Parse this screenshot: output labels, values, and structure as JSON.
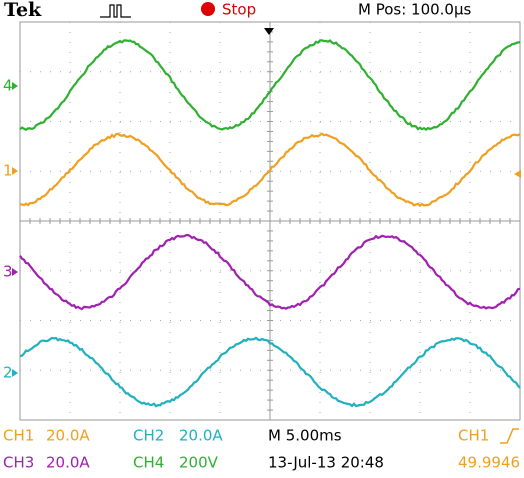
{
  "header": {
    "brand": "Tek",
    "status": "Stop",
    "position": "M Pos: 100.0µs"
  },
  "markers": [
    "4",
    "1",
    "3",
    "2"
  ],
  "footer": {
    "ch1_label": "CH1",
    "ch1_scale": "20.0A",
    "ch2_label": "CH2",
    "ch2_scale": "20.0A",
    "timebase": "M 5.00ms",
    "trigger_source": "CH1",
    "ch3_label": "CH3",
    "ch3_scale": "20.0A",
    "ch4_label": "CH4",
    "ch4_scale": "200V",
    "date": "13-Jul-13 20:48",
    "frequency": "49.9946"
  }
}
